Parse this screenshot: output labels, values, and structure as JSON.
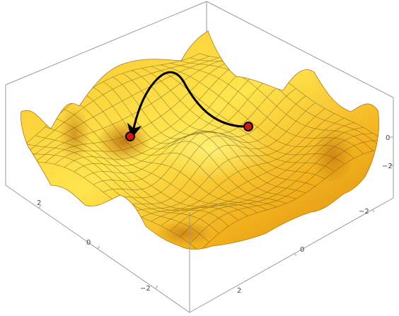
{
  "plot": {
    "kind": "3d-surface",
    "surface_colors": {
      "light": "#ffe24a",
      "mid": "#f5b21a",
      "dark": "#c9780a"
    },
    "mesh_color": "#6b5a1a",
    "box_color": "#9a9a9a",
    "path_color": "#000000",
    "point_fill": "#d21818",
    "point_stroke": "#000000",
    "left_axis_ticks": [
      "2",
      "0",
      "−2"
    ],
    "bottom_axis_ticks": [
      "0",
      "2"
    ],
    "right_axis_ticks": [
      "−2"
    ],
    "vertical_axis_ticks": [
      "0",
      "−2"
    ]
  }
}
